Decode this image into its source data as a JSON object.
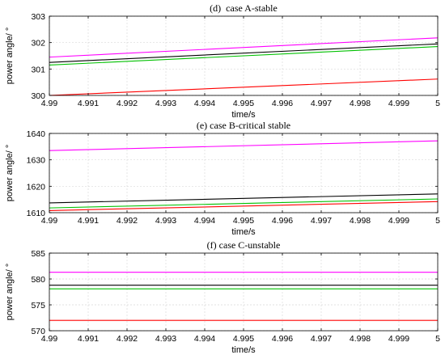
{
  "chart_data": [
    {
      "type": "line",
      "title": "(d)  case A-stable",
      "xlabel": "time/s",
      "ylabel": "power angle/ °",
      "xlim": [
        4.99,
        5
      ],
      "ylim": [
        300,
        303
      ],
      "xticks": [
        4.99,
        4.991,
        4.992,
        4.993,
        4.994,
        4.995,
        4.996,
        4.997,
        4.998,
        4.999,
        5
      ],
      "xtick_labels": [
        "4.99",
        "4.991",
        "4.992",
        "4.993",
        "4.994",
        "4.995",
        "4.996",
        "4.997",
        "4.998",
        "4.999",
        "5"
      ],
      "yticks": [
        300,
        301,
        302,
        303
      ],
      "ytick_labels": [
        "300",
        "301",
        "302",
        "303"
      ],
      "grid": true,
      "series": [
        {
          "color": "#ff00ff",
          "x": [
            4.99,
            5
          ],
          "y": [
            301.45,
            302.18
          ]
        },
        {
          "color": "#000000",
          "x": [
            4.99,
            5
          ],
          "y": [
            301.25,
            301.95
          ]
        },
        {
          "color": "#00c000",
          "x": [
            4.99,
            5
          ],
          "y": [
            301.15,
            301.85
          ]
        },
        {
          "color": "#ff0000",
          "x": [
            4.99,
            5
          ],
          "y": [
            300.0,
            300.62
          ]
        }
      ]
    },
    {
      "type": "line",
      "title": "(e) case B-critical stable",
      "xlabel": "time/s",
      "ylabel": "power angle/ °",
      "xlim": [
        4.99,
        5
      ],
      "ylim": [
        1610,
        1640
      ],
      "xticks": [
        4.99,
        4.991,
        4.992,
        4.993,
        4.994,
        4.995,
        4.996,
        4.997,
        4.998,
        4.999,
        5
      ],
      "xtick_labels": [
        "4.99",
        "4.991",
        "4.992",
        "4.993",
        "4.994",
        "4.995",
        "4.996",
        "4.997",
        "4.998",
        "4.999",
        "5"
      ],
      "yticks": [
        1610,
        1620,
        1630,
        1640
      ],
      "ytick_labels": [
        "1610",
        "1620",
        "1630",
        "1640"
      ],
      "grid": true,
      "series": [
        {
          "color": "#ff00ff",
          "x": [
            4.99,
            5
          ],
          "y": [
            1633.5,
            1637.2
          ]
        },
        {
          "color": "#000000",
          "x": [
            4.99,
            5
          ],
          "y": [
            1613.7,
            1617.1
          ]
        },
        {
          "color": "#00c000",
          "x": [
            4.99,
            5
          ],
          "y": [
            1611.8,
            1615.2
          ]
        },
        {
          "color": "#ff0000",
          "x": [
            4.99,
            5
          ],
          "y": [
            1610.8,
            1614.2
          ]
        }
      ]
    },
    {
      "type": "line",
      "title": "(f) case C-unstable",
      "xlabel": "time/s",
      "ylabel": "power angle/ °",
      "xlim": [
        4.99,
        5
      ],
      "ylim": [
        570,
        585
      ],
      "xticks": [
        4.99,
        4.991,
        4.992,
        4.993,
        4.994,
        4.995,
        4.996,
        4.997,
        4.998,
        4.999,
        5
      ],
      "xtick_labels": [
        "4.99",
        "4.991",
        "4.992",
        "4.993",
        "4.994",
        "4.995",
        "4.996",
        "4.997",
        "4.998",
        "4.999",
        "5"
      ],
      "yticks": [
        570,
        575,
        580,
        585
      ],
      "ytick_labels": [
        "570",
        "575",
        "580",
        "585"
      ],
      "grid": true,
      "series": [
        {
          "color": "#ff00ff",
          "x": [
            4.99,
            5
          ],
          "y": [
            581.3,
            581.3
          ]
        },
        {
          "color": "#000000",
          "x": [
            4.99,
            5
          ],
          "y": [
            578.8,
            578.8
          ]
        },
        {
          "color": "#00c000",
          "x": [
            4.99,
            5
          ],
          "y": [
            578.1,
            578.1
          ]
        },
        {
          "color": "#ff0000",
          "x": [
            4.99,
            5
          ],
          "y": [
            572.0,
            572.0
          ]
        }
      ]
    }
  ]
}
